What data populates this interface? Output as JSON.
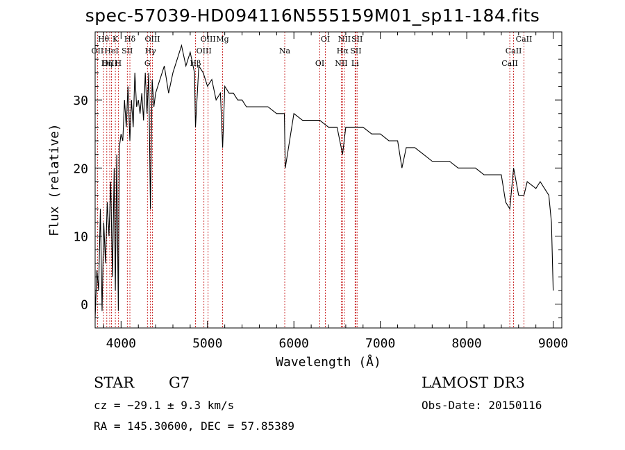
{
  "chart_data": {
    "type": "line",
    "title": "spec-57039-HD094116N555159M01_sp11-184.fits",
    "xlabel": "Wavelength (Å)",
    "ylabel": "Flux (relative)",
    "xlim": [
      3700,
      9100
    ],
    "ylim": [
      -3.5,
      40
    ],
    "xticks": [
      4000,
      5000,
      6000,
      7000,
      8000,
      9000
    ],
    "yticks": [
      0,
      10,
      20,
      30
    ],
    "x": [
      3700,
      3720,
      3740,
      3760,
      3780,
      3800,
      3820,
      3840,
      3860,
      3880,
      3900,
      3920,
      3934,
      3950,
      3968,
      3980,
      4000,
      4020,
      4040,
      4060,
      4080,
      4102,
      4120,
      4140,
      4160,
      4180,
      4200,
      4220,
      4240,
      4260,
      4280,
      4300,
      4320,
      4340,
      4360,
      4380,
      4400,
      4450,
      4500,
      4550,
      4600,
      4650,
      4700,
      4750,
      4800,
      4850,
      4861,
      4900,
      4950,
      5000,
      5050,
      5100,
      5150,
      5175,
      5200,
      5250,
      5300,
      5350,
      5400,
      5450,
      5500,
      5600,
      5700,
      5800,
      5890,
      5900,
      6000,
      6100,
      6200,
      6300,
      6400,
      6500,
      6563,
      6600,
      6700,
      6800,
      6900,
      7000,
      7100,
      7200,
      7250,
      7300,
      7400,
      7500,
      7600,
      7700,
      7800,
      7900,
      8000,
      8100,
      8200,
      8300,
      8400,
      8450,
      8498,
      8542,
      8600,
      8662,
      8700,
      8800,
      8850,
      8900,
      8950,
      8980,
      9000
    ],
    "y": [
      -2,
      5,
      2,
      14,
      -1,
      12,
      6,
      15,
      10,
      18,
      4,
      20,
      2,
      22,
      -1,
      23,
      25,
      24,
      30,
      26,
      32,
      24,
      30,
      26,
      34,
      29,
      30,
      28,
      31,
      27,
      34,
      28,
      34,
      14,
      33,
      29,
      31,
      33,
      35,
      31,
      34,
      36,
      38,
      35,
      37,
      34,
      26,
      35,
      34,
      32,
      33,
      30,
      31,
      23,
      32,
      31,
      31,
      30,
      30,
      29,
      29,
      29,
      29,
      28,
      28,
      20,
      28,
      27,
      27,
      27,
      26,
      26,
      22,
      26,
      26,
      26,
      25,
      25,
      24,
      24,
      20,
      23,
      23,
      22,
      21,
      21,
      21,
      20,
      20,
      20,
      19,
      19,
      19,
      15,
      14,
      20,
      16,
      16,
      18,
      17,
      18,
      17,
      16,
      12,
      2
    ],
    "lines": [
      {
        "label": "Hθ",
        "wavelength": 3797
      },
      {
        "label": "OII",
        "wavelength": 3727
      },
      {
        "label": "OIII",
        "wavelength": 3869
      },
      {
        "label": "K",
        "wavelength": 3934
      },
      {
        "label": "HeI",
        "wavelength": 3889
      },
      {
        "label": "Hη",
        "wavelength": 3835
      },
      {
        "label": "Hδ",
        "wavelength": 4102
      },
      {
        "label": "SII",
        "wavelength": 4072
      },
      {
        "label": "H",
        "wavelength": 3968
      },
      {
        "label": "OIII",
        "wavelength": 4363
      },
      {
        "label": "Hγ",
        "wavelength": 4340
      },
      {
        "label": "G",
        "wavelength": 4305
      },
      {
        "label": "OIII",
        "wavelength": 5007
      },
      {
        "label": "OIII",
        "wavelength": 4959
      },
      {
        "label": "Hβ",
        "wavelength": 4861
      },
      {
        "label": "Mg",
        "wavelength": 5175
      },
      {
        "label": "Na",
        "wavelength": 5894
      },
      {
        "label": "OI",
        "wavelength": 6300
      },
      {
        "label": "OI",
        "wavelength": 6364
      },
      {
        "label": "Hα",
        "wavelength": 6563
      },
      {
        "label": "NII",
        "wavelength": 6548
      },
      {
        "label": "NII",
        "wavelength": 6584
      },
      {
        "label": "SII",
        "wavelength": 6717
      },
      {
        "label": "Li",
        "wavelength": 6708
      },
      {
        "label": "SII",
        "wavelength": 6731
      },
      {
        "label": "CaII",
        "wavelength": 8542
      },
      {
        "label": "CaII",
        "wavelength": 8498
      },
      {
        "label": "CaII",
        "wavelength": 8662
      }
    ]
  },
  "info": {
    "object_class": "STAR",
    "subclass": "G7",
    "survey": "LAMOST DR3",
    "cz": "cz = −29.1 ± 9.3 km/s",
    "obs_date": "Obs-Date: 20150116",
    "coords": "RA = 145.30600, DEC =  57.85389"
  }
}
